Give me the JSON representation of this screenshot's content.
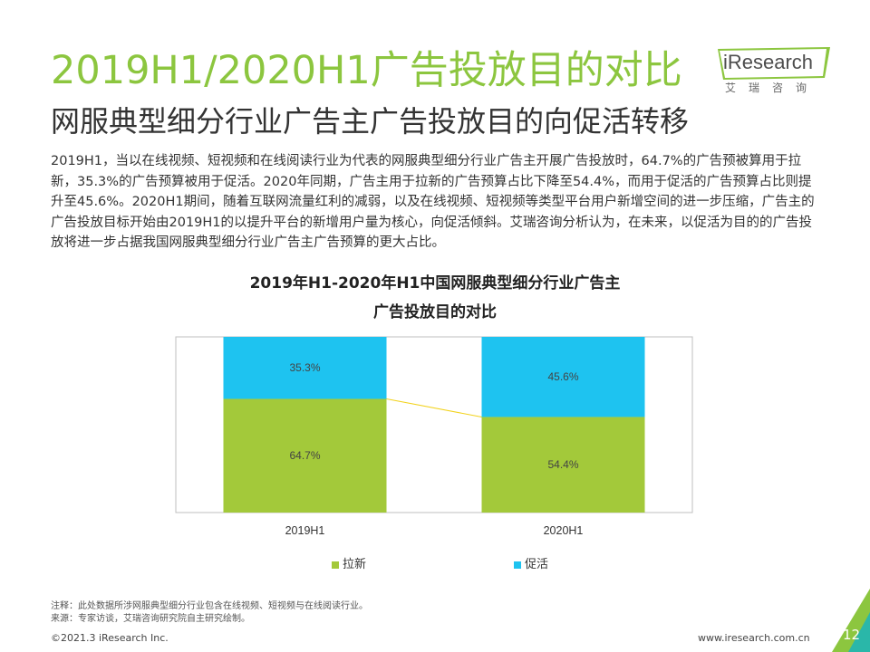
{
  "header": {
    "title": "2019H1/2020H1广告投放目的对比",
    "subtitle": "网服典型细分行业广告主广告投放目的向促活转移"
  },
  "logo": {
    "name": "iResearch",
    "sub": "艾瑞咨询"
  },
  "body_text": "2019H1，当以在线视频、短视频和在线阅读行业为代表的网服典型细分行业广告主开展广告投放时，64.7%的广告预被算用于拉新，35.3%的广告预算被用于促活。2020年同期，广告主用于拉新的广告预算占比下降至54.4%，而用于促活的广告预算占比则提升至45.6%。2020H1期间，随着互联网流量红利的减弱，以及在线视频、短视频等类型平台用户新增空间的进一步压缩，广告主的广告投放目标开始由2019H1的以提升平台的新增用户量为核心，向促活倾斜。艾瑞咨询分析认为，在未来，以促活为目的的广告投放将进一步占据我国网服典型细分行业广告主广告预算的更大占比。",
  "chart_data": {
    "type": "bar",
    "stacked": true,
    "percent_stacked": true,
    "title": "2019年H1-2020年H1中国网服典型细分行业广告主",
    "subtitle": "广告投放目的对比",
    "categories": [
      "2019H1",
      "2020H1"
    ],
    "series": [
      {
        "name": "拉新",
        "values": [
          64.7,
          54.4
        ],
        "labels": [
          "64.7%",
          "54.4%"
        ],
        "color": "#a3c93a"
      },
      {
        "name": "促活",
        "values": [
          35.3,
          45.6
        ],
        "labels": [
          "35.3%",
          "45.6%"
        ],
        "color": "#1ec3f0"
      }
    ],
    "ylim": [
      0,
      100
    ],
    "xlabel": "",
    "ylabel": "",
    "legend": "bottom",
    "grid": false,
    "connector_color": "#f2d21b"
  },
  "notes": {
    "note": "注释：此处数据所涉网服典型细分行业包含在线视频、短视频与在线阅读行业。",
    "source": "来源：专家访谈，艾瑞咨询研究院自主研究绘制。"
  },
  "footer": {
    "copyright": "©2021.3 iResearch Inc.",
    "website": "www.iresearch.com.cn",
    "page": "12"
  },
  "colors": {
    "accent_green": "#8cc63f",
    "bar_green": "#a3c93a",
    "bar_blue": "#1ec3f0",
    "corner_green": "#8cc63f",
    "corner_teal": "#2ab7a9"
  }
}
